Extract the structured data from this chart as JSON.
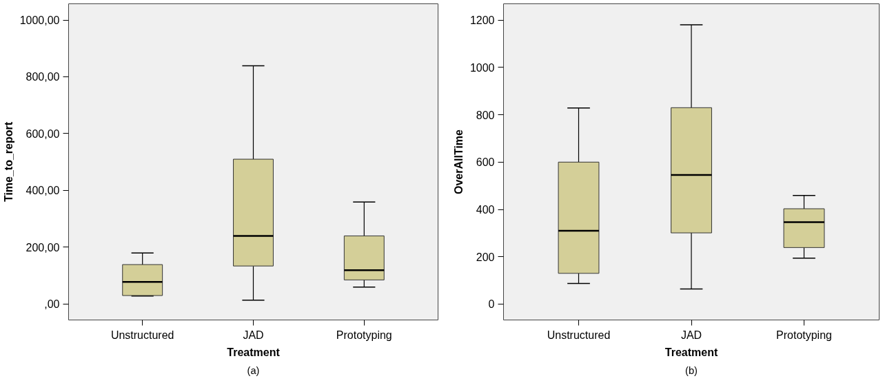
{
  "chart_data": [
    {
      "type": "box",
      "xlabel": "Treatment",
      "ylabel": "Time_to_report",
      "categories": [
        "Unstructured",
        "JAD",
        "Prototyping"
      ],
      "color": "#d4cf98",
      "ylim": [
        -56,
        1057
      ],
      "yticks": [
        {
          "value": 0,
          "label": ",00"
        },
        {
          "value": 200,
          "label": "200,00"
        },
        {
          "value": 400,
          "label": "400,00"
        },
        {
          "value": 600,
          "label": "600,00"
        },
        {
          "value": 800,
          "label": "800,00"
        },
        {
          "value": 1000,
          "label": "1000,00"
        }
      ],
      "grid": false,
      "annotations": [
        "(a)"
      ],
      "boxes": [
        {
          "low": 28,
          "q1": 30,
          "median": 78,
          "q3": 139,
          "high": 180
        },
        {
          "low": 14,
          "q1": 134,
          "median": 240,
          "q3": 510,
          "high": 839
        },
        {
          "low": 60,
          "q1": 85,
          "median": 119,
          "q3": 240,
          "high": 359
        }
      ]
    },
    {
      "type": "box",
      "xlabel": "Treatment",
      "ylabel": "OverAllTime",
      "categories": [
        "Unstructured",
        "JAD",
        "Prototyping"
      ],
      "color": "#d4cf98",
      "ylim": [
        -67,
        1269
      ],
      "yticks": [
        0,
        200,
        400,
        600,
        800,
        1000,
        1200
      ],
      "grid": false,
      "annotations": [
        "(b)"
      ],
      "boxes": [
        {
          "low": 87,
          "q1": 130,
          "median": 310,
          "q3": 600,
          "high": 829
        },
        {
          "low": 64,
          "q1": 301,
          "median": 546,
          "q3": 830,
          "high": 1180
        },
        {
          "low": 194,
          "q1": 239,
          "median": 346,
          "q3": 403,
          "high": 459
        }
      ]
    }
  ]
}
